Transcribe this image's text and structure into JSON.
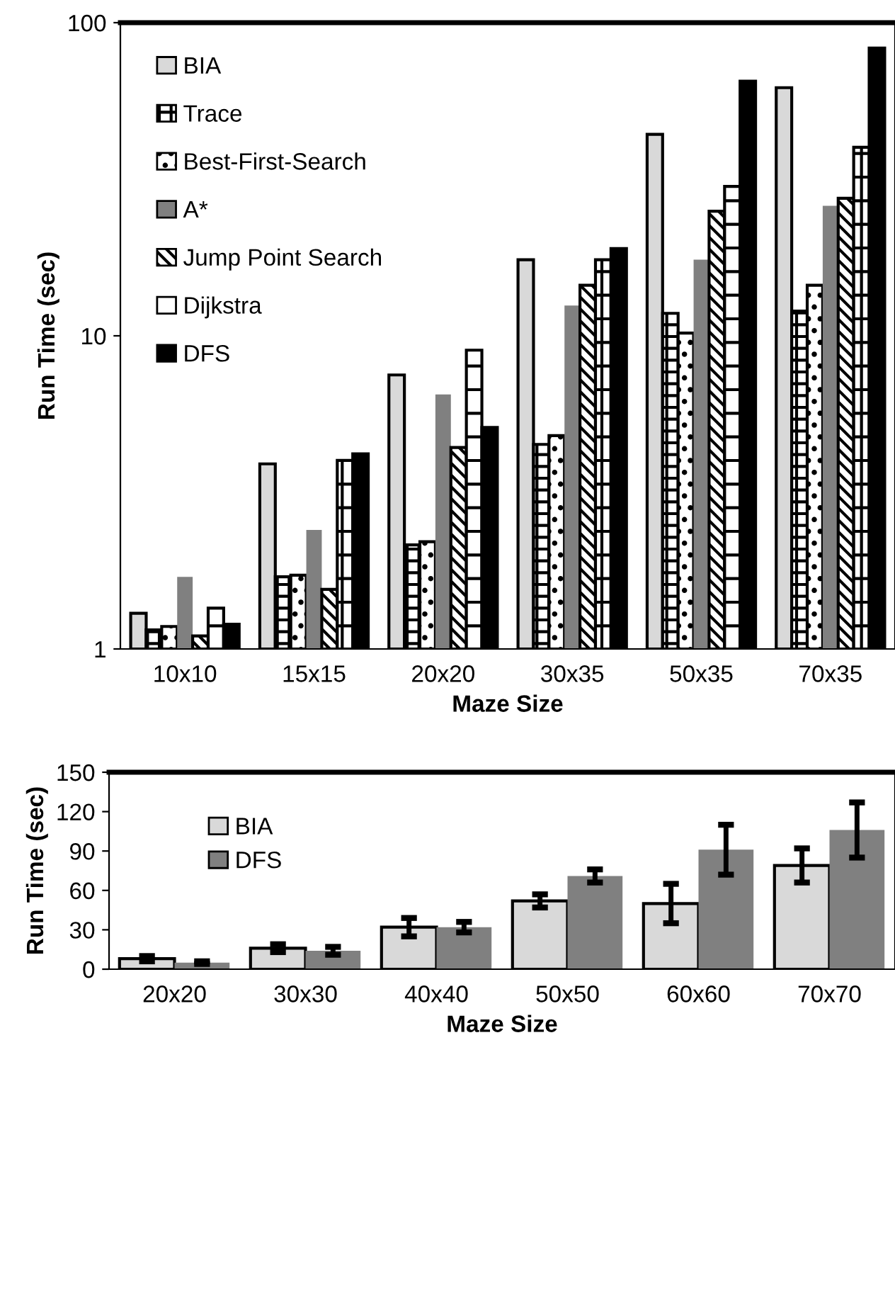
{
  "chart_data": [
    {
      "type": "bar",
      "xlabel": "Maze Size",
      "ylabel": "Run Time (sec)",
      "categories": [
        "10x10",
        "15x15",
        "20x20",
        "30x35",
        "50x35",
        "70x35"
      ],
      "log": true,
      "ylim": [
        1,
        100
      ],
      "yticks": [
        1,
        10,
        100
      ],
      "legend": "top left",
      "grid": false,
      "series": [
        {
          "name": "BIA",
          "color": "#d9d9d9",
          "values": [
            1.3,
            3.9,
            7.5,
            17.5,
            44,
            62
          ]
        },
        {
          "name": "Trace",
          "color": "#000000",
          "values": [
            1.15,
            1.7,
            2.15,
            4.5,
            11.8,
            12
          ]
        },
        {
          "name": "Best-First-Search",
          "color": "#000000",
          "values": [
            1.18,
            1.72,
            2.2,
            4.8,
            10.2,
            14.5
          ]
        },
        {
          "name": "A*",
          "color": "#808080",
          "values": [
            1.7,
            2.4,
            6.5,
            12.5,
            17.5,
            26
          ]
        },
        {
          "name": "Jump Point Search",
          "color": "#000000",
          "values": [
            1.1,
            1.55,
            4.4,
            14.5,
            25,
            27.5
          ]
        },
        {
          "name": "Dijkstra",
          "color": "#000000",
          "values": [
            1.35,
            4.0,
            9,
            17.5,
            30,
            40
          ]
        },
        {
          "name": "DFS",
          "color": "#000000",
          "values": [
            1.2,
            4.2,
            5.1,
            19,
            65,
            83
          ]
        }
      ]
    },
    {
      "type": "bar",
      "xlabel": "Maze Size",
      "ylabel": "Run Time (sec)",
      "categories": [
        "20x20",
        "30x30",
        "40x40",
        "50x50",
        "60x60",
        "70x70"
      ],
      "ylim": [
        0,
        150
      ],
      "yticks": [
        0,
        30,
        60,
        90,
        120,
        150
      ],
      "legend": "top left",
      "grid": false,
      "series": [
        {
          "name": "BIA",
          "color": "#d9d9d9",
          "values": [
            8,
            16,
            32,
            52,
            50,
            79
          ],
          "errors": [
            2,
            3,
            7,
            5,
            15,
            13
          ]
        },
        {
          "name": "DFS",
          "color": "#808080",
          "values": [
            5,
            14,
            32,
            71,
            91,
            106
          ],
          "errors": [
            1,
            3,
            4,
            5,
            19,
            21
          ]
        }
      ]
    }
  ]
}
